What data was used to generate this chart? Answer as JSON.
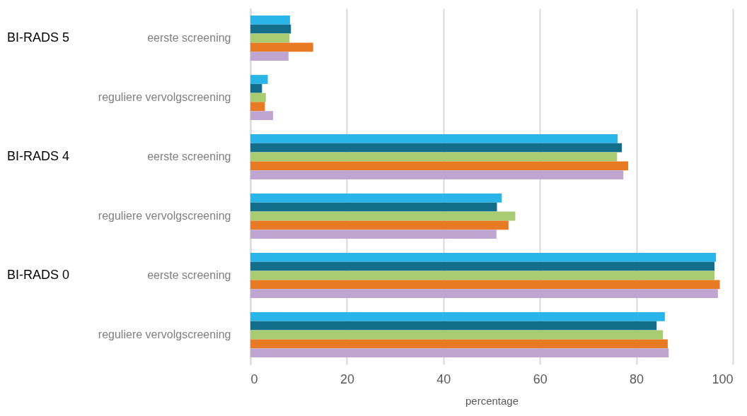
{
  "chart_data": {
    "type": "bar",
    "orientation": "horizontal",
    "xlabel": "percentage",
    "categories": [
      "eerste screening",
      "reguliere vervolgscreening",
      "eerste screening",
      "reguliere vervolgscreening",
      "eerste screening",
      "reguliere vervolgscreening"
    ],
    "annotations": [
      "BI-RADS 5",
      "BI-RADS 4",
      "BI-RADS 0"
    ],
    "series": [
      {
        "color": "#29b5e8",
        "values": [
          8.2,
          3.6,
          76.1,
          52.1,
          96.5,
          85.9
        ]
      },
      {
        "color": "#136e8c",
        "values": [
          8.4,
          2.4,
          77.0,
          51.1,
          96.2,
          84.2
        ]
      },
      {
        "color": "#a9cb72",
        "values": [
          8.1,
          3.2,
          76.0,
          54.9,
          96.2,
          85.5
        ]
      },
      {
        "color": "#e87a24",
        "values": [
          13.0,
          3.0,
          78.3,
          53.5,
          97.3,
          86.5
        ]
      },
      {
        "color": "#bfa6d1",
        "values": [
          7.9,
          4.7,
          77.3,
          51.0,
          96.9,
          86.7
        ]
      }
    ],
    "xlim": [
      0,
      100
    ],
    "xticks": [
      0,
      20,
      40,
      60,
      80,
      100
    ],
    "grid": "x"
  }
}
